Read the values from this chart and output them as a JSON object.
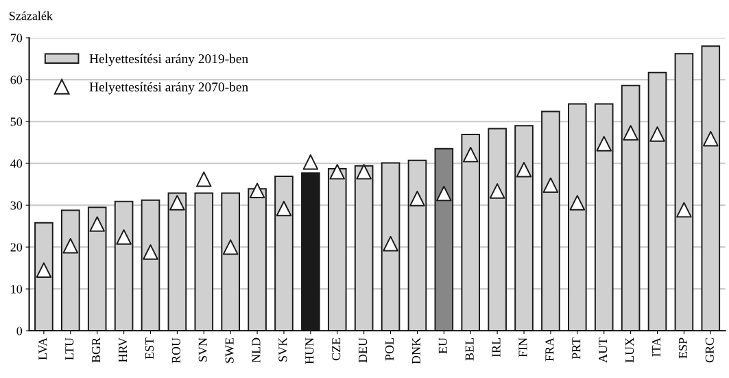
{
  "chart_data": {
    "type": "bar",
    "ylabel": "Százalék",
    "categories": [
      "LVA",
      "LTU",
      "BGR",
      "HRV",
      "EST",
      "ROU",
      "SVN",
      "SWE",
      "NLD",
      "SVK",
      "HUN",
      "CZE",
      "DEU",
      "POL",
      "DNK",
      "EU",
      "BEL",
      "IRL",
      "FIN",
      "FRA",
      "PRT",
      "AUT",
      "LUX",
      "ITA",
      "ESP",
      "GRC"
    ],
    "series": [
      {
        "name": "Helyettesítési arány 2019-ben",
        "color": "#d0d0d0",
        "colors": [
          "#d0d0d0",
          "#d0d0d0",
          "#d0d0d0",
          "#d0d0d0",
          "#d0d0d0",
          "#d0d0d0",
          "#d0d0d0",
          "#d0d0d0",
          "#d0d0d0",
          "#d0d0d0",
          "#1a1a1a",
          "#d0d0d0",
          "#d0d0d0",
          "#d0d0d0",
          "#d0d0d0",
          "#878787",
          "#d0d0d0",
          "#d0d0d0",
          "#d0d0d0",
          "#d0d0d0",
          "#d0d0d0",
          "#d0d0d0",
          "#d0d0d0",
          "#d0d0d0",
          "#d0d0d0",
          "#d0d0d0"
        ],
        "values": [
          25.8,
          28.8,
          29.5,
          30.9,
          31.2,
          32.9,
          32.9,
          32.9,
          33.9,
          36.9,
          37.7,
          38.7,
          39.4,
          40.1,
          40.7,
          43.5,
          46.9,
          48.3,
          49.0,
          52.4,
          54.2,
          54.2,
          58.6,
          61.7,
          66.2,
          68.0
        ]
      },
      {
        "name": "Helyettesítési arány 2070-ben",
        "type": "scatter",
        "color": "#ffffff",
        "values": [
          14.5,
          20.3,
          25.5,
          22.4,
          18.8,
          30.6,
          36.2,
          20.0,
          33.5,
          29.2,
          40.3,
          38.0,
          38.0,
          20.8,
          31.6,
          32.8,
          42.1,
          33.4,
          38.5,
          34.8,
          30.6,
          44.7,
          47.3,
          47.0,
          28.9,
          45.9
        ]
      }
    ],
    "ylim": [
      0,
      70
    ],
    "yticks": [
      0,
      10,
      20,
      30,
      40,
      50,
      60,
      70
    ],
    "grid": "y",
    "legend": "top left",
    "marker": "triangle"
  }
}
